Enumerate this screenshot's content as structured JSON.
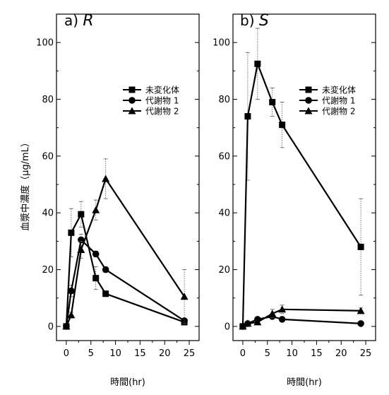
{
  "chart_data": [
    {
      "type": "line",
      "title_prefix": "a)",
      "title_var": "R",
      "xlabel": "時間(hr)",
      "ylabel": "血漿中濃度（μg/mL）",
      "xlim": [
        -2,
        27
      ],
      "ylim": [
        -5,
        110
      ],
      "xticks": [
        0,
        5,
        10,
        15,
        20,
        25
      ],
      "yticks": [
        0,
        20,
        40,
        60,
        80,
        100
      ],
      "xtick_labels": [
        "0",
        "5",
        "10",
        "15",
        "20",
        "25"
      ],
      "ytick_labels": [
        "0",
        "20",
        "40",
        "60",
        "80",
        "100"
      ],
      "legend_position": "top-right",
      "series": [
        {
          "name": "未変化体",
          "marker": "square",
          "x": [
            0,
            1,
            3,
            6,
            8,
            24
          ],
          "y": [
            0,
            33,
            39.5,
            17,
            11.5,
            1.5
          ],
          "err": [
            0,
            8.5,
            4.5,
            4,
            1,
            1
          ]
        },
        {
          "name": "代謝物 1",
          "marker": "circle",
          "x": [
            0,
            1,
            3,
            6,
            8,
            24
          ],
          "y": [
            0,
            12.5,
            30.5,
            25.5,
            20,
            2
          ],
          "err": [
            0,
            2,
            2,
            1,
            1,
            0.5
          ]
        },
        {
          "name": "代謝物 2",
          "marker": "triangle",
          "x": [
            0,
            1,
            3,
            6,
            8,
            24
          ],
          "y": [
            0,
            4,
            27,
            41,
            52,
            10.5
          ],
          "err": [
            0,
            1,
            3,
            3.5,
            7,
            9.5
          ]
        }
      ]
    },
    {
      "type": "line",
      "title_prefix": "b)",
      "title_var": "S",
      "xlabel": "時間(hr)",
      "ylabel": "",
      "xlim": [
        -2,
        27
      ],
      "ylim": [
        -5,
        110
      ],
      "xticks": [
        0,
        5,
        10,
        15,
        20,
        25
      ],
      "yticks": [
        0,
        20,
        40,
        60,
        80,
        100
      ],
      "xtick_labels": [
        "0",
        "5",
        "10",
        "15",
        "20",
        "25"
      ],
      "ytick_labels": [
        "0",
        "20",
        "40",
        "60",
        "80",
        "100"
      ],
      "legend_position": "top-right",
      "series": [
        {
          "name": "未変化体",
          "marker": "square",
          "x": [
            0,
            1,
            3,
            6,
            8,
            24
          ],
          "y": [
            0,
            74,
            92.5,
            79,
            71,
            28
          ],
          "err": [
            0,
            22.5,
            12.5,
            5,
            8,
            17
          ]
        },
        {
          "name": "代謝物 1",
          "marker": "circle",
          "x": [
            0,
            1,
            3,
            6,
            8,
            24
          ],
          "y": [
            0,
            1,
            2.5,
            3.5,
            2.5,
            1
          ],
          "err": [
            0,
            0.5,
            0.5,
            0.5,
            0.5,
            0.3
          ]
        },
        {
          "name": "代謝物 2",
          "marker": "triangle",
          "x": [
            0,
            1,
            3,
            6,
            8,
            24
          ],
          "y": [
            0,
            1,
            1.5,
            4.5,
            6,
            5.5
          ],
          "err": [
            0,
            0.5,
            0.5,
            1.5,
            1.5,
            1
          ]
        }
      ]
    }
  ]
}
